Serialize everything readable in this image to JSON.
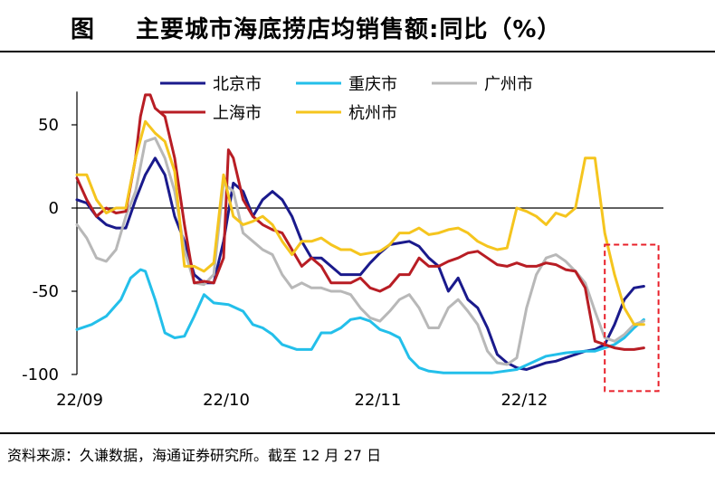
{
  "figure": {
    "label": "图",
    "title": "主要城市海底捞店均销售额:同比（%）",
    "source": "资料来源：久谦数据，海通证券研究所。截至 12 月 27 日"
  },
  "chart_data": {
    "type": "line",
    "title": "主要城市海底捞店均销售额:同比（%）",
    "xlabel": "",
    "ylabel": "",
    "ylim": [
      -100,
      70
    ],
    "yticks": [
      50,
      0,
      -50,
      -100
    ],
    "ytick_labels": [
      "50",
      "0",
      "-50",
      "-100"
    ],
    "xlim": [
      0,
      120
    ],
    "xticks": [
      0,
      30,
      61,
      91
    ],
    "xtick_labels": [
      "22/09",
      "22/10",
      "22/11",
      "22/12"
    ],
    "highlight_box": {
      "x": [
        108,
        119
      ],
      "y": [
        -110,
        -22
      ],
      "color": "#e8202a",
      "style": "dashed"
    },
    "series": [
      {
        "name": "北京市",
        "color": "#1a1a8c",
        "points": [
          [
            0,
            5
          ],
          [
            2,
            3
          ],
          [
            4,
            -5
          ],
          [
            6,
            -10
          ],
          [
            8,
            -12
          ],
          [
            10,
            -12
          ],
          [
            12,
            5
          ],
          [
            14,
            20
          ],
          [
            16,
            30
          ],
          [
            18,
            20
          ],
          [
            20,
            -5
          ],
          [
            22,
            -20
          ],
          [
            24,
            -40
          ],
          [
            26,
            -45
          ],
          [
            28,
            -45
          ],
          [
            30,
            -20
          ],
          [
            32,
            15
          ],
          [
            34,
            10
          ],
          [
            36,
            -5
          ],
          [
            38,
            5
          ],
          [
            40,
            10
          ],
          [
            42,
            5
          ],
          [
            44,
            -5
          ],
          [
            46,
            -20
          ],
          [
            48,
            -30
          ],
          [
            50,
            -30
          ],
          [
            52,
            -35
          ],
          [
            54,
            -40
          ],
          [
            56,
            -40
          ],
          [
            58,
            -40
          ],
          [
            60,
            -33
          ],
          [
            62,
            -27
          ],
          [
            64,
            -22
          ],
          [
            66,
            -21
          ],
          [
            68,
            -20
          ],
          [
            70,
            -23
          ],
          [
            72,
            -30
          ],
          [
            74,
            -35
          ],
          [
            76,
            -50
          ],
          [
            78,
            -42
          ],
          [
            80,
            -55
          ],
          [
            82,
            -60
          ],
          [
            84,
            -72
          ],
          [
            86,
            -88
          ],
          [
            88,
            -93
          ],
          [
            90,
            -96
          ],
          [
            92,
            -97
          ],
          [
            94,
            -95
          ],
          [
            96,
            -93
          ],
          [
            98,
            -92
          ],
          [
            100,
            -90
          ],
          [
            102,
            -88
          ],
          [
            104,
            -86
          ],
          [
            106,
            -85
          ],
          [
            108,
            -82
          ],
          [
            110,
            -70
          ],
          [
            112,
            -55
          ],
          [
            114,
            -48
          ],
          [
            116,
            -47
          ]
        ]
      },
      {
        "name": "重庆市",
        "color": "#23bfea",
        "points": [
          [
            0,
            -73
          ],
          [
            3,
            -70
          ],
          [
            6,
            -65
          ],
          [
            9,
            -55
          ],
          [
            11,
            -42
          ],
          [
            13,
            -37
          ],
          [
            14,
            -38
          ],
          [
            16,
            -55
          ],
          [
            18,
            -75
          ],
          [
            20,
            -78
          ],
          [
            22,
            -77
          ],
          [
            24,
            -65
          ],
          [
            26,
            -52
          ],
          [
            28,
            -57
          ],
          [
            31,
            -58
          ],
          [
            34,
            -62
          ],
          [
            36,
            -70
          ],
          [
            38,
            -72
          ],
          [
            40,
            -76
          ],
          [
            42,
            -82
          ],
          [
            45,
            -85
          ],
          [
            48,
            -85
          ],
          [
            50,
            -75
          ],
          [
            52,
            -75
          ],
          [
            54,
            -72
          ],
          [
            56,
            -67
          ],
          [
            58,
            -66
          ],
          [
            60,
            -68
          ],
          [
            62,
            -73
          ],
          [
            64,
            -75
          ],
          [
            66,
            -78
          ],
          [
            68,
            -90
          ],
          [
            70,
            -96
          ],
          [
            72,
            -98
          ],
          [
            75,
            -99
          ],
          [
            80,
            -99
          ],
          [
            85,
            -99
          ],
          [
            90,
            -97
          ],
          [
            93,
            -93
          ],
          [
            96,
            -89
          ],
          [
            100,
            -87
          ],
          [
            104,
            -86
          ],
          [
            106,
            -86
          ],
          [
            108,
            -84
          ],
          [
            110,
            -82
          ],
          [
            112,
            -78
          ],
          [
            114,
            -72
          ],
          [
            116,
            -67
          ]
        ]
      },
      {
        "name": "广州市",
        "color": "#b8b8b8",
        "points": [
          [
            0,
            -10
          ],
          [
            2,
            -18
          ],
          [
            4,
            -30
          ],
          [
            6,
            -32
          ],
          [
            8,
            -25
          ],
          [
            10,
            -5
          ],
          [
            12,
            10
          ],
          [
            14,
            40
          ],
          [
            16,
            42
          ],
          [
            18,
            30
          ],
          [
            20,
            10
          ],
          [
            22,
            -25
          ],
          [
            24,
            -45
          ],
          [
            26,
            -46
          ],
          [
            28,
            -40
          ],
          [
            30,
            15
          ],
          [
            32,
            10
          ],
          [
            34,
            -15
          ],
          [
            36,
            -20
          ],
          [
            38,
            -25
          ],
          [
            40,
            -28
          ],
          [
            42,
            -40
          ],
          [
            44,
            -48
          ],
          [
            46,
            -45
          ],
          [
            48,
            -48
          ],
          [
            50,
            -48
          ],
          [
            52,
            -50
          ],
          [
            54,
            -50
          ],
          [
            56,
            -52
          ],
          [
            58,
            -60
          ],
          [
            60,
            -66
          ],
          [
            62,
            -68
          ],
          [
            64,
            -62
          ],
          [
            66,
            -55
          ],
          [
            68,
            -52
          ],
          [
            70,
            -60
          ],
          [
            72,
            -72
          ],
          [
            74,
            -72
          ],
          [
            76,
            -60
          ],
          [
            78,
            -55
          ],
          [
            80,
            -62
          ],
          [
            82,
            -70
          ],
          [
            84,
            -86
          ],
          [
            86,
            -93
          ],
          [
            88,
            -94
          ],
          [
            90,
            -90
          ],
          [
            92,
            -60
          ],
          [
            94,
            -40
          ],
          [
            96,
            -30
          ],
          [
            98,
            -28
          ],
          [
            100,
            -32
          ],
          [
            102,
            -38
          ],
          [
            104,
            -45
          ],
          [
            106,
            -62
          ],
          [
            108,
            -78
          ],
          [
            110,
            -80
          ],
          [
            112,
            -76
          ],
          [
            114,
            -70
          ],
          [
            116,
            -68
          ]
        ]
      },
      {
        "name": "上海市",
        "color": "#b81d24",
        "points": [
          [
            0,
            18
          ],
          [
            2,
            5
          ],
          [
            4,
            -5
          ],
          [
            6,
            0
          ],
          [
            8,
            -3
          ],
          [
            10,
            -2
          ],
          [
            12,
            30
          ],
          [
            13,
            55
          ],
          [
            14,
            68
          ],
          [
            15,
            68
          ],
          [
            16,
            60
          ],
          [
            18,
            55
          ],
          [
            20,
            30
          ],
          [
            22,
            -10
          ],
          [
            24,
            -45
          ],
          [
            26,
            -44
          ],
          [
            28,
            -45
          ],
          [
            30,
            -30
          ],
          [
            31,
            35
          ],
          [
            32,
            30
          ],
          [
            34,
            5
          ],
          [
            36,
            -5
          ],
          [
            38,
            -10
          ],
          [
            40,
            -13
          ],
          [
            42,
            -15
          ],
          [
            44,
            -25
          ],
          [
            46,
            -35
          ],
          [
            48,
            -30
          ],
          [
            50,
            -35
          ],
          [
            52,
            -45
          ],
          [
            54,
            -45
          ],
          [
            56,
            -45
          ],
          [
            58,
            -42
          ],
          [
            60,
            -48
          ],
          [
            62,
            -50
          ],
          [
            64,
            -47
          ],
          [
            66,
            -40
          ],
          [
            68,
            -40
          ],
          [
            70,
            -30
          ],
          [
            72,
            -35
          ],
          [
            74,
            -35
          ],
          [
            76,
            -32
          ],
          [
            78,
            -30
          ],
          [
            80,
            -27
          ],
          [
            82,
            -26
          ],
          [
            84,
            -30
          ],
          [
            86,
            -34
          ],
          [
            88,
            -35
          ],
          [
            90,
            -33
          ],
          [
            92,
            -35
          ],
          [
            94,
            -35
          ],
          [
            96,
            -33
          ],
          [
            98,
            -34
          ],
          [
            100,
            -37
          ],
          [
            102,
            -38
          ],
          [
            104,
            -48
          ],
          [
            106,
            -80
          ],
          [
            108,
            -82
          ],
          [
            110,
            -84
          ],
          [
            112,
            -85
          ],
          [
            114,
            -85
          ],
          [
            116,
            -84
          ]
        ]
      },
      {
        "name": "杭州市",
        "color": "#f5c51e",
        "points": [
          [
            0,
            20
          ],
          [
            2,
            20
          ],
          [
            4,
            5
          ],
          [
            6,
            -3
          ],
          [
            8,
            0
          ],
          [
            10,
            0
          ],
          [
            12,
            30
          ],
          [
            14,
            52
          ],
          [
            16,
            45
          ],
          [
            18,
            40
          ],
          [
            20,
            22
          ],
          [
            22,
            -35
          ],
          [
            24,
            -35
          ],
          [
            26,
            -38
          ],
          [
            28,
            -33
          ],
          [
            30,
            20
          ],
          [
            32,
            -5
          ],
          [
            34,
            -10
          ],
          [
            36,
            -8
          ],
          [
            38,
            -5
          ],
          [
            40,
            -10
          ],
          [
            42,
            -20
          ],
          [
            44,
            -28
          ],
          [
            46,
            -20
          ],
          [
            48,
            -20
          ],
          [
            50,
            -18
          ],
          [
            52,
            -22
          ],
          [
            54,
            -25
          ],
          [
            56,
            -25
          ],
          [
            58,
            -28
          ],
          [
            60,
            -27
          ],
          [
            62,
            -26
          ],
          [
            64,
            -22
          ],
          [
            66,
            -15
          ],
          [
            68,
            -15
          ],
          [
            70,
            -12
          ],
          [
            72,
            -16
          ],
          [
            74,
            -15
          ],
          [
            76,
            -13
          ],
          [
            78,
            -12
          ],
          [
            80,
            -15
          ],
          [
            82,
            -20
          ],
          [
            84,
            -23
          ],
          [
            86,
            -25
          ],
          [
            88,
            -24
          ],
          [
            90,
            0
          ],
          [
            92,
            -2
          ],
          [
            94,
            -5
          ],
          [
            96,
            -10
          ],
          [
            98,
            -3
          ],
          [
            100,
            -5
          ],
          [
            102,
            0
          ],
          [
            104,
            30
          ],
          [
            106,
            30
          ],
          [
            108,
            -15
          ],
          [
            110,
            -40
          ],
          [
            112,
            -60
          ],
          [
            114,
            -70
          ],
          [
            116,
            -70
          ]
        ]
      }
    ]
  }
}
